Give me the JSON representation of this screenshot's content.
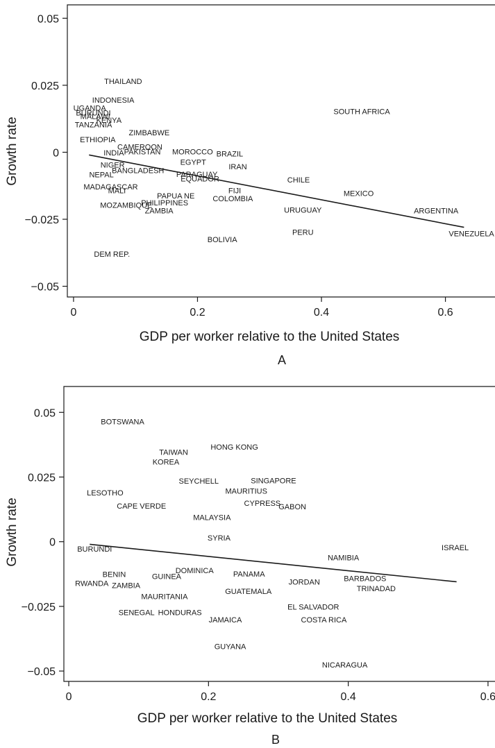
{
  "chart_data": [
    {
      "type": "scatter",
      "panel": "A",
      "xlabel": "GDP per worker relative to the United States",
      "ylabel": "Growth rate",
      "xlim": [
        -0.01,
        0.68
      ],
      "ylim": [
        -0.054,
        0.055
      ],
      "xticks": [
        {
          "v": 0,
          "t": "0"
        },
        {
          "v": 0.2,
          "t": "0.2"
        },
        {
          "v": 0.4,
          "t": "0.4"
        },
        {
          "v": 0.6,
          "t": "0.6"
        }
      ],
      "yticks": [
        {
          "v": -0.05,
          "t": "−0.05"
        },
        {
          "v": -0.025,
          "t": "−0.025"
        },
        {
          "v": 0,
          "t": "0"
        },
        {
          "v": 0.025,
          "t": "0.025"
        },
        {
          "v": 0.05,
          "t": "0.05"
        }
      ],
      "fit_line": [
        [
          0.025,
          -0.001
        ],
        [
          0.63,
          -0.028
        ]
      ],
      "points": [
        {
          "label": "THAILAND",
          "x": 0.08,
          "y": 0.0265
        },
        {
          "label": "INDONESIA",
          "x": 0.064,
          "y": 0.0195
        },
        {
          "label": "UGANDA",
          "x": 0.026,
          "y": 0.0165
        },
        {
          "label": "BURUNDI",
          "x": 0.032,
          "y": 0.0148
        },
        {
          "label": "MALAWI",
          "x": 0.035,
          "y": 0.0135
        },
        {
          "label": "KENYA",
          "x": 0.057,
          "y": 0.012
        },
        {
          "label": "TANZANIA",
          "x": 0.032,
          "y": 0.0103
        },
        {
          "label": "ZIMBABWE",
          "x": 0.122,
          "y": 0.0073
        },
        {
          "label": "SOUTH AFRICA",
          "x": 0.465,
          "y": 0.0152
        },
        {
          "label": "ETHIOPIA",
          "x": 0.039,
          "y": 0.0048
        },
        {
          "label": "CAMEROON",
          "x": 0.107,
          "y": 0.002
        },
        {
          "label": "INDIA",
          "x": 0.065,
          "y": -0.0002
        },
        {
          "label": "PAKISTAN",
          "x": 0.111,
          "y": 0.0003
        },
        {
          "label": "MOROCCO",
          "x": 0.192,
          "y": 0.0003
        },
        {
          "label": "BRAZIL",
          "x": 0.252,
          "y": -0.0005
        },
        {
          "label": "EGYPT",
          "x": 0.193,
          "y": -0.0037
        },
        {
          "label": "NIGER",
          "x": 0.063,
          "y": -0.0047
        },
        {
          "label": "IRAN",
          "x": 0.265,
          "y": -0.0053
        },
        {
          "label": "BANGLADESH",
          "x": 0.104,
          "y": -0.0067
        },
        {
          "label": "NEPAL",
          "x": 0.045,
          "y": -0.0083
        },
        {
          "label": "PARAGUAY",
          "x": 0.199,
          "y": -0.0082
        },
        {
          "label": "EQUADOR",
          "x": 0.204,
          "y": -0.0098
        },
        {
          "label": "CHILE",
          "x": 0.363,
          "y": -0.0103
        },
        {
          "label": "MADAGASCAR",
          "x": 0.06,
          "y": -0.0128
        },
        {
          "label": "MALI",
          "x": 0.07,
          "y": -0.0143
        },
        {
          "label": "FIJI",
          "x": 0.26,
          "y": -0.0143
        },
        {
          "label": "MEXICO",
          "x": 0.46,
          "y": -0.0153
        },
        {
          "label": "PAPUA NE",
          "x": 0.165,
          "y": -0.0162
        },
        {
          "label": "COLOMBIA",
          "x": 0.257,
          "y": -0.0172
        },
        {
          "label": "PHILIPPINES",
          "x": 0.147,
          "y": -0.0188
        },
        {
          "label": "MOZAMBIQUE",
          "x": 0.085,
          "y": -0.0197
        },
        {
          "label": "ZAMBIA",
          "x": 0.138,
          "y": -0.0218
        },
        {
          "label": "URUGUAY",
          "x": 0.37,
          "y": -0.0215
        },
        {
          "label": "ARGENTINA",
          "x": 0.585,
          "y": -0.0218
        },
        {
          "label": "PERU",
          "x": 0.37,
          "y": -0.0298
        },
        {
          "label": "VENEZUELA",
          "x": 0.642,
          "y": -0.0303
        },
        {
          "label": "BOLIVIA",
          "x": 0.24,
          "y": -0.0325
        },
        {
          "label": "DEM REP.",
          "x": 0.062,
          "y": -0.038
        }
      ]
    },
    {
      "type": "scatter",
      "panel": "B",
      "xlabel": "GDP per worker relative to the United States",
      "ylabel": "Growth rate",
      "xlim": [
        -0.007,
        0.61
      ],
      "ylim": [
        -0.054,
        0.06
      ],
      "xticks": [
        {
          "v": 0,
          "t": "0"
        },
        {
          "v": 0.2,
          "t": "0.2"
        },
        {
          "v": 0.4,
          "t": "0.4"
        },
        {
          "v": 0.6,
          "t": "0.6"
        }
      ],
      "yticks": [
        {
          "v": -0.05,
          "t": "−0.05"
        },
        {
          "v": -0.025,
          "t": "−0.025"
        },
        {
          "v": 0,
          "t": "0"
        },
        {
          "v": 0.025,
          "t": "0.025"
        },
        {
          "v": 0.05,
          "t": "0.05"
        }
      ],
      "fit_line": [
        [
          0.03,
          -0.001
        ],
        [
          0.555,
          -0.0155
        ]
      ],
      "points": [
        {
          "label": "BOTSWANA",
          "x": 0.077,
          "y": 0.0465
        },
        {
          "label": "TAIWAN",
          "x": 0.15,
          "y": 0.0346
        },
        {
          "label": "HONG KONG",
          "x": 0.237,
          "y": 0.0366
        },
        {
          "label": "KOREA",
          "x": 0.139,
          "y": 0.0309
        },
        {
          "label": "SEYCHELL",
          "x": 0.186,
          "y": 0.0235
        },
        {
          "label": "SINGAPORE",
          "x": 0.293,
          "y": 0.0236
        },
        {
          "label": "LESOTHO",
          "x": 0.052,
          "y": 0.0189
        },
        {
          "label": "MAURITIUS",
          "x": 0.254,
          "y": 0.0196
        },
        {
          "label": "CAPE VERDE",
          "x": 0.104,
          "y": 0.0138
        },
        {
          "label": "CYPRESS",
          "x": 0.277,
          "y": 0.015
        },
        {
          "label": "GABON",
          "x": 0.32,
          "y": 0.0136
        },
        {
          "label": "MALAYSIA",
          "x": 0.205,
          "y": 0.0095
        },
        {
          "label": "SYRIA",
          "x": 0.215,
          "y": 0.0015
        },
        {
          "label": "BURUNDI",
          "x": 0.037,
          "y": -0.0028
        },
        {
          "label": "ISRAEL",
          "x": 0.553,
          "y": -0.0022
        },
        {
          "label": "NAMIBIA",
          "x": 0.393,
          "y": -0.0061
        },
        {
          "label": "DOMINICA",
          "x": 0.18,
          "y": -0.0111
        },
        {
          "label": "BENIN",
          "x": 0.065,
          "y": -0.0125
        },
        {
          "label": "GUINEA",
          "x": 0.14,
          "y": -0.0133
        },
        {
          "label": "PANAMA",
          "x": 0.258,
          "y": -0.0124
        },
        {
          "label": "BARBADOS",
          "x": 0.424,
          "y": -0.0141
        },
        {
          "label": "JORDAN",
          "x": 0.337,
          "y": -0.0155
        },
        {
          "label": "RWANDA",
          "x": 0.033,
          "y": -0.0161
        },
        {
          "label": "ZAMBIA",
          "x": 0.082,
          "y": -0.0169
        },
        {
          "label": "TRINADAD",
          "x": 0.44,
          "y": -0.0181
        },
        {
          "label": "GUATEMALA",
          "x": 0.257,
          "y": -0.0191
        },
        {
          "label": "MAURITANIA",
          "x": 0.137,
          "y": -0.0212
        },
        {
          "label": "EL SALVADOR",
          "x": 0.35,
          "y": -0.0252
        },
        {
          "label": "SENEGAL",
          "x": 0.097,
          "y": -0.0273
        },
        {
          "label": "HONDURAS",
          "x": 0.159,
          "y": -0.0273
        },
        {
          "label": "JAMAICA",
          "x": 0.224,
          "y": -0.0301
        },
        {
          "label": "COSTA RICA",
          "x": 0.365,
          "y": -0.0301
        },
        {
          "label": "GUYANA",
          "x": 0.231,
          "y": -0.0405
        },
        {
          "label": "NICARAGUA",
          "x": 0.395,
          "y": -0.0475
        }
      ]
    }
  ],
  "panels": {
    "a": {
      "letter": "A",
      "xlabel": "GDP per worker relative to the United States",
      "ylabel": "Growth rate"
    },
    "b": {
      "letter": "B",
      "xlabel": "GDP per worker relative to the United States",
      "ylabel": "Growth rate"
    }
  }
}
